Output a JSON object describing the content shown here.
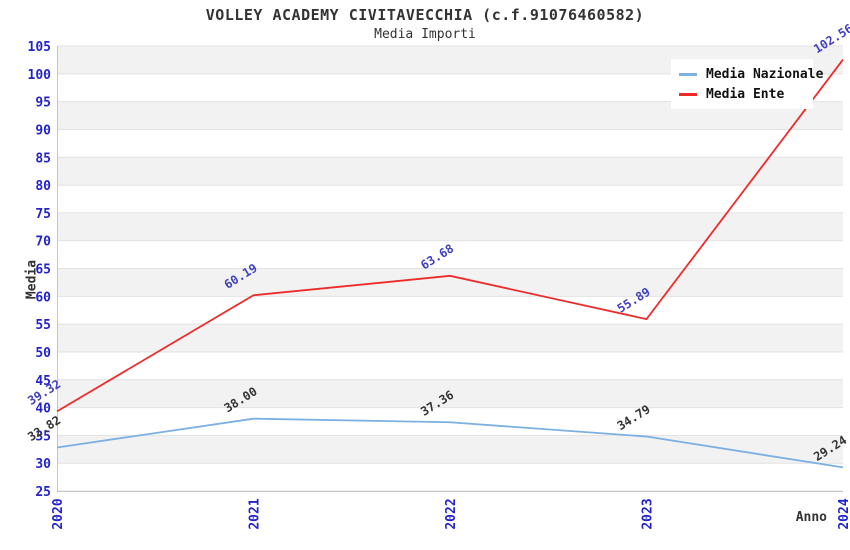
{
  "chart_data": {
    "type": "line",
    "title": "VOLLEY ACADEMY CIVITAVECCHIA (c.f.91076460582)",
    "subtitle": "Media Importi",
    "xlabel": "Anno",
    "ylabel": "Media",
    "categories": [
      "2020",
      "2021",
      "2022",
      "2023",
      "2024"
    ],
    "series": [
      {
        "name": "Media Nazionale",
        "color": "#7cb0e2",
        "label_color": "#333333",
        "values": [
          32.82,
          38.0,
          37.36,
          34.79,
          29.24
        ]
      },
      {
        "name": "Media Ente",
        "color": "#ee2b2b",
        "label_color": "#4040c0",
        "values": [
          39.32,
          60.19,
          63.68,
          55.89,
          102.56
        ]
      }
    ],
    "ylim": [
      25,
      105
    ],
    "ytick_step": 5,
    "value_decimals": 2,
    "legend_position": "top-right",
    "grid": "horizontal-bands"
  },
  "colors": {
    "title_text": "#333333",
    "axis_title_text": "#333333",
    "tick_label": "#2323cc",
    "band_gray": "#f2f2f2",
    "band_white": "#ffffff",
    "gridline": "#e2e2e2",
    "axis_border": "#c6c6c6",
    "legend_text": "#111111",
    "legend_background": "#ffffff"
  }
}
